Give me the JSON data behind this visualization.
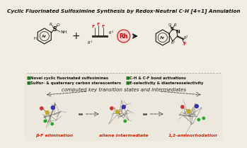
{
  "title": "Cyclic Fluorinated Sulfoximine Synthesis by Redox-Neutral C-H [4+1] Annulation",
  "title_fontsize": 5.2,
  "bg_color": "#f2ede3",
  "top_bg": "#f2ede3",
  "bottom_bg": "#ede8dd",
  "separator_color": "#999999",
  "bullet_color": "#1e7a1e",
  "bullet_points_left": [
    "Novel cyclic fluorinated sulfoximines",
    "Sulfur- & quaternary carbon stereocenters"
  ],
  "bullet_points_right": [
    "C-H & C-F bond activations",
    "E-selectivity & diastereoselectivity"
  ],
  "bullet_fontsize": 3.8,
  "computed_text": "computed key transition states and intermediates",
  "computed_fontsize": 5.0,
  "labels": [
    "β-F elimination",
    "allene intermediate",
    "1,2-aminorhodation"
  ],
  "label_fontsize": 4.5,
  "label_color": "#cc2200",
  "rh_fill": "#f0d0d0",
  "rh_edge": "#cc3333",
  "rh_text": "#cc0000",
  "arrow_color": "#111111",
  "dot_color": "#555555",
  "chem_color": "#111111",
  "f_color": "#cc2222",
  "green_atom": "#22aa22",
  "red_atom": "#cc3333",
  "yellow_atom": "#bbaa22",
  "blue_atom": "#3333aa",
  "mol_bg": "#e8e3d8"
}
